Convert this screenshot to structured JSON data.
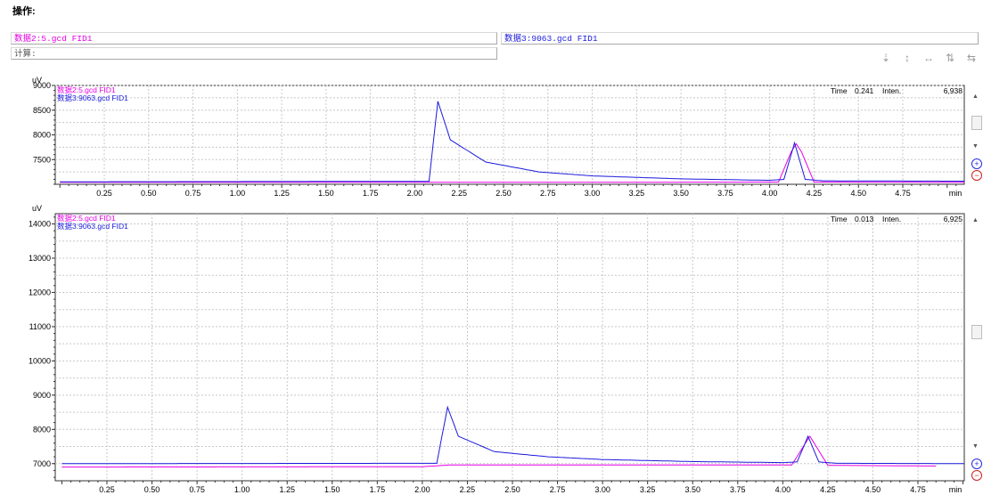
{
  "toolbar": {
    "operation_label": "操作:",
    "calc_label": "计算:"
  },
  "data_fields": {
    "left": "数据2:5.gcd FID1",
    "right": "数据3:9063.gcd FID1"
  },
  "tool_icons": [
    "move-down-icon",
    "move-updown-icon",
    "expand-horizontal-icon",
    "swap-vertical-icon",
    "align-icon"
  ],
  "colors": {
    "series_pink": "#e600e6",
    "series_blue": "#1a1adc",
    "grid": "#c8c8c8"
  },
  "charts": [
    {
      "legend": [
        "数据2:5.gcd FID1",
        "数据3:9063.gcd FID1"
      ],
      "y_unit": "uV",
      "x_unit": "min",
      "info": {
        "time_label": "Time",
        "time_value": "0.241",
        "inten_label": "Inten.",
        "inten_value": "6,938"
      },
      "yticks": [
        "9000",
        "8500",
        "8000",
        "7500"
      ],
      "xticks": [
        "0.25",
        "0.50",
        "0.75",
        "1.00",
        "1.25",
        "1.50",
        "1.75",
        "2.00",
        "2.25",
        "2.50",
        "2.75",
        "3.00",
        "3.25",
        "3.50",
        "3.75",
        "4.00",
        "4.25",
        "4.50",
        "4.75"
      ]
    },
    {
      "legend": [
        "数据2:5.gcd FID1",
        "数据3:9063.gcd FID1"
      ],
      "y_unit": "uV",
      "x_unit": "min",
      "info": {
        "time_label": "Time",
        "time_value": "0.013",
        "inten_label": "Inten.",
        "inten_value": "6,925"
      },
      "yticks": [
        "14000",
        "13000",
        "12000",
        "11000",
        "10000",
        "9000",
        "8000",
        "7000"
      ],
      "xticks": [
        "0.25",
        "0.50",
        "0.75",
        "1.00",
        "1.25",
        "1.50",
        "1.75",
        "2.00",
        "2.25",
        "2.50",
        "2.75",
        "3.00",
        "3.25",
        "3.50",
        "3.75",
        "4.00",
        "4.25",
        "4.50",
        "4.75"
      ]
    }
  ],
  "chart_data": [
    {
      "type": "line",
      "xlabel": "min",
      "ylabel": "uV",
      "xlim": [
        0,
        5.4
      ],
      "ylim": [
        7000,
        9000
      ],
      "series": [
        {
          "name": "数据2:5.gcd FID1",
          "color": "#e600e6",
          "x": [
            0,
            2.0,
            2.1,
            3.0,
            4.05,
            4.12,
            4.15,
            4.18,
            4.25,
            5.4
          ],
          "y": [
            7040,
            7040,
            7040,
            7040,
            7045,
            7650,
            7820,
            7650,
            7045,
            7040
          ]
        },
        {
          "name": "数据3:9063.gcd FID1",
          "color": "#1a1adc",
          "x": [
            0,
            2.08,
            2.13,
            2.2,
            2.4,
            2.7,
            3.0,
            3.5,
            4.0,
            4.08,
            4.14,
            4.2,
            4.3,
            5.4
          ],
          "y": [
            7050,
            7060,
            8680,
            7900,
            7450,
            7250,
            7170,
            7110,
            7080,
            7100,
            7840,
            7100,
            7070,
            7060
          ]
        }
      ]
    },
    {
      "type": "line",
      "xlabel": "min",
      "ylabel": "uV",
      "xlim": [
        0,
        5.05
      ],
      "ylim": [
        6500,
        14300
      ],
      "series": [
        {
          "name": "数据2:5.gcd FID1",
          "color": "#e600e6",
          "x": [
            0,
            2.0,
            2.15,
            4.05,
            4.12,
            4.15,
            4.18,
            4.25,
            4.85
          ],
          "y": [
            6900,
            6910,
            6960,
            6960,
            7550,
            7800,
            7550,
            6950,
            6930
          ]
        },
        {
          "name": "数据3:9063.gcd FID1",
          "color": "#1a1adc",
          "x": [
            0,
            2.08,
            2.14,
            2.2,
            2.4,
            2.7,
            3.0,
            3.5,
            4.0,
            4.08,
            4.14,
            4.2,
            4.3,
            5.05
          ],
          "y": [
            7000,
            7010,
            8650,
            7800,
            7350,
            7200,
            7120,
            7060,
            7030,
            7050,
            7800,
            7050,
            7010,
            7000
          ]
        }
      ]
    }
  ]
}
